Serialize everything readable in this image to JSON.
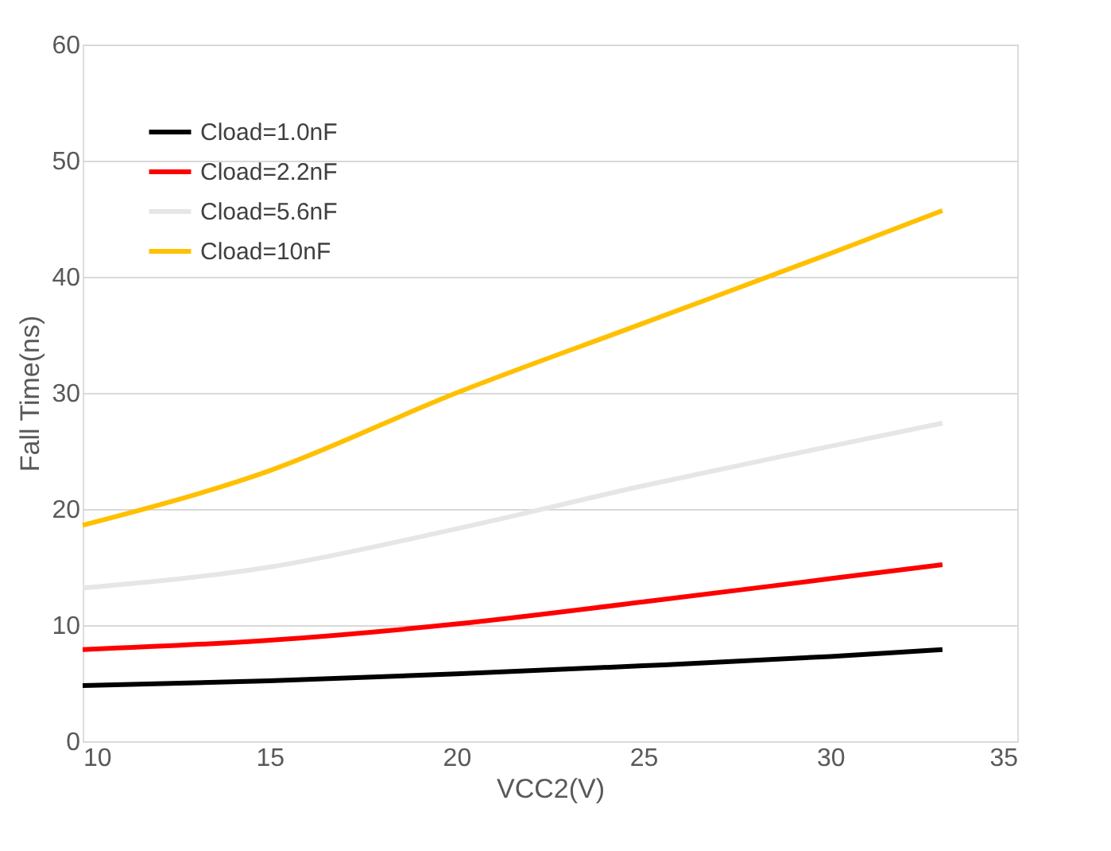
{
  "chart_data": {
    "type": "line",
    "x": [
      10,
      15,
      20,
      25,
      30,
      33
    ],
    "series": [
      {
        "name": "Cload=1.0nF",
        "color": "#000000",
        "values": [
          4.8,
          5.2,
          5.8,
          6.5,
          7.3,
          7.9
        ]
      },
      {
        "name": "Cload=2.2nF",
        "color": "#ff0000",
        "values": [
          7.9,
          8.7,
          10.1,
          12.0,
          14.0,
          15.2
        ]
      },
      {
        "name": "Cload=5.6nF",
        "color": "#e6e6e6",
        "values": [
          13.2,
          15.0,
          18.3,
          22.0,
          25.4,
          27.4
        ]
      },
      {
        "name": "Cload=10nF",
        "color": "#ffc000",
        "values": [
          18.6,
          23.3,
          30.0,
          36.0,
          42.0,
          45.7
        ]
      }
    ],
    "xlabel": "VCC2(V)",
    "ylabel": "Fall Time(ns)",
    "xlim": [
      10,
      35
    ],
    "xticks": [
      10,
      15,
      20,
      25,
      30,
      35
    ],
    "ylim": [
      0,
      60
    ],
    "yticks": [
      0,
      10,
      20,
      30,
      40,
      50,
      60
    ],
    "grid": "y",
    "legend": "top left",
    "marker": "none",
    "line_style": "solid"
  }
}
